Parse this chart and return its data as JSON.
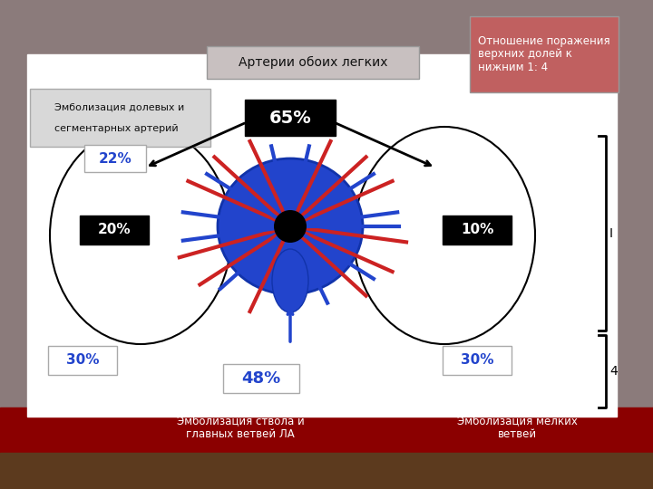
{
  "title": "Артерии обоих легких",
  "title_box_color": "#c0b8b8",
  "top_right_text": "Отношение поражения\nверхних долей к\nнижним 1: 4",
  "top_right_box_color": "#c06060",
  "label_lobar": "Эмболизация долевых и\n\nсегментарных артерий",
  "label_lobar_box": "#d0d0d0",
  "label_trunk": "Эмболизация ствола и\nглавных ветвей ЛА",
  "label_small": "Эмболизация мелких\nветвей",
  "pct_65": "65%",
  "pct_22": "22%",
  "pct_20": "20%",
  "pct_10": "10%",
  "pct_30l": "30%",
  "pct_30r": "30%",
  "pct_48": "48%",
  "bg_top_color": "#8b7b7b",
  "bg_bottom_color": "#8b0000",
  "slide_bg": "#c8bfbf",
  "white_box": "#ffffff",
  "black_box": "#111111",
  "blue_text": "#1a1aff",
  "white_text": "#ffffff",
  "dark_text": "#111111"
}
